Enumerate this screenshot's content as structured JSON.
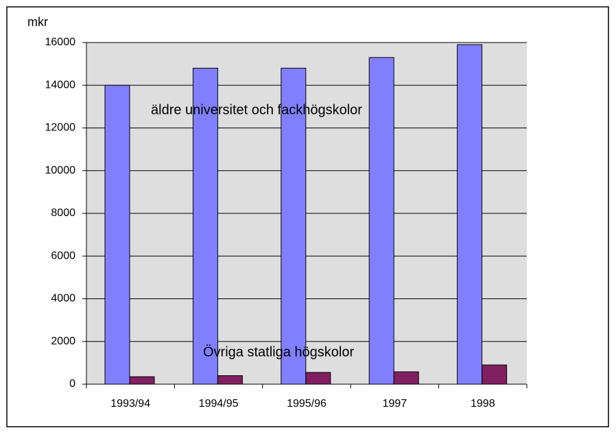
{
  "chart_data": {
    "type": "bar",
    "y_label": "mkr",
    "categories": [
      "1993/94",
      "1994/95",
      "1995/96",
      "1997",
      "1998"
    ],
    "series": [
      {
        "name": "äldre universitet och fackhögskolor",
        "color": "#8080ff",
        "values": [
          14000,
          14800,
          14800,
          15300,
          15900
        ]
      },
      {
        "name": "Övriga statliga högskolor",
        "color": "#802060",
        "values": [
          350,
          400,
          550,
          580,
          900
        ]
      }
    ],
    "ylim": [
      0,
      16000
    ],
    "yticks": [
      0,
      2000,
      4000,
      6000,
      8000,
      10000,
      12000,
      14000,
      16000
    ],
    "grid": true
  }
}
